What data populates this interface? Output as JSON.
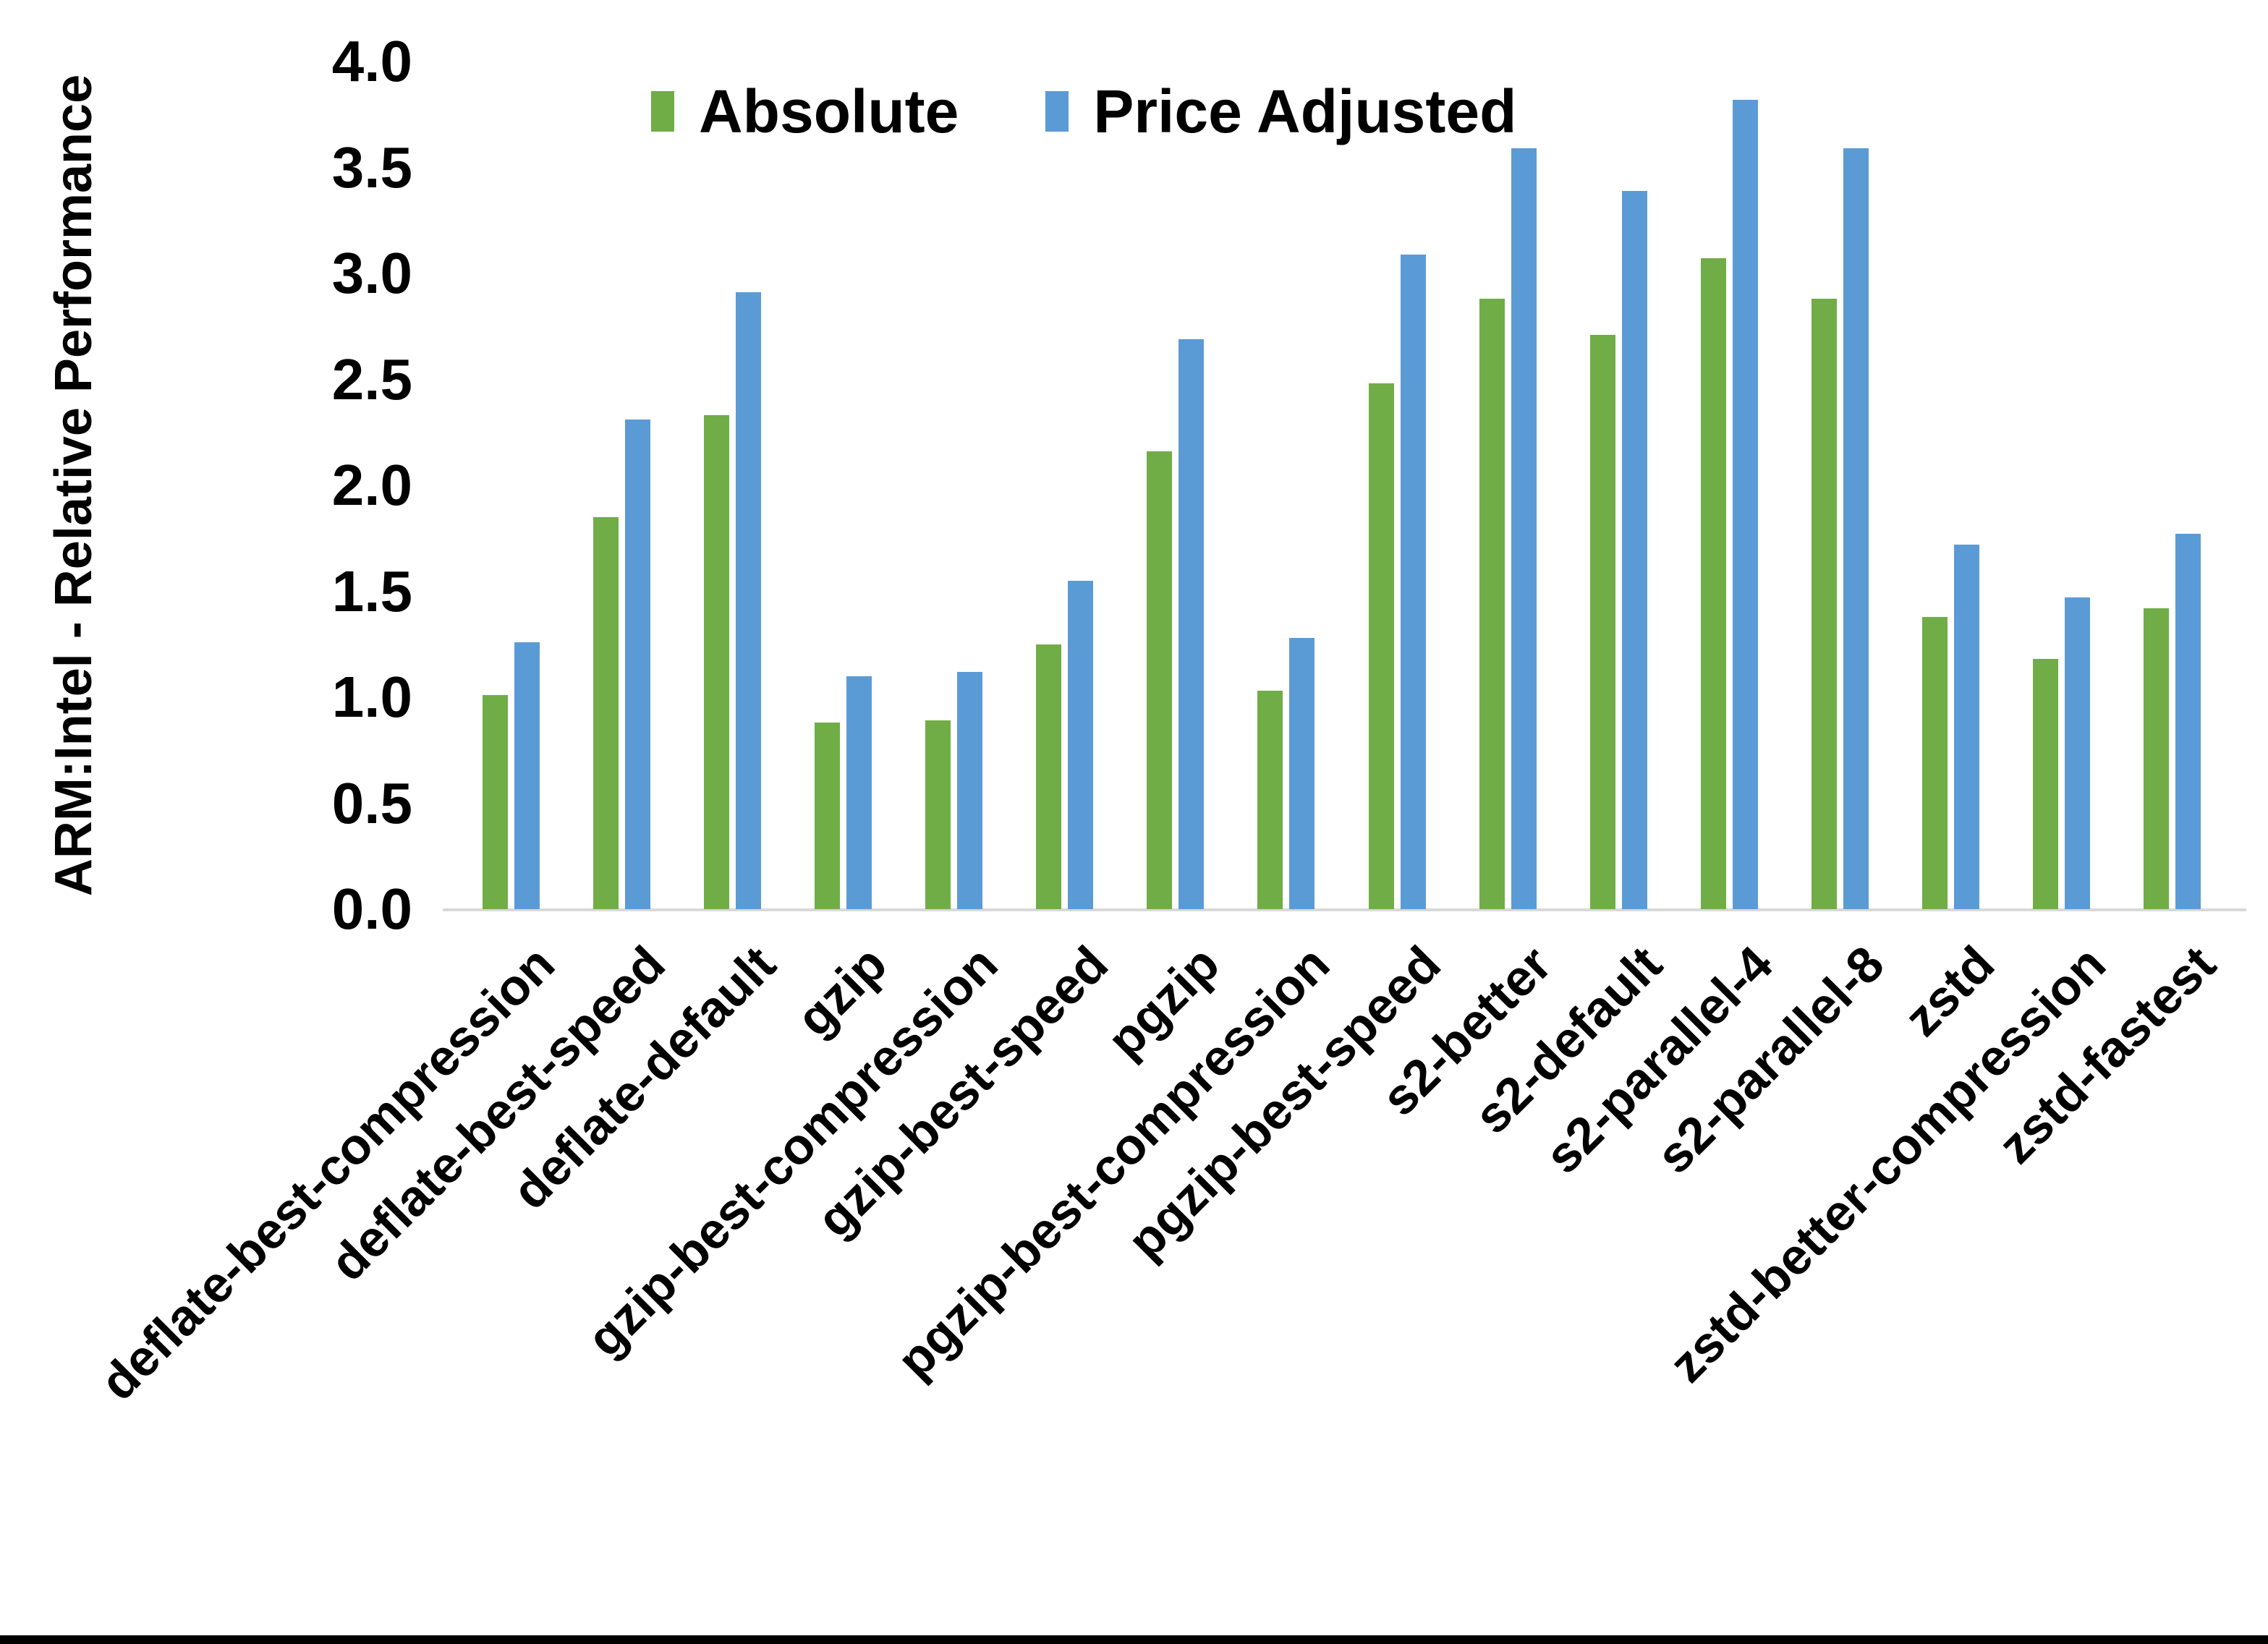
{
  "page": {
    "background": "#ffffff",
    "bottom_edge_color": "#000000"
  },
  "chart_data": {
    "type": "bar",
    "title": "",
    "xlabel": "",
    "ylabel": "ARM:Intel - Relative Performance",
    "ylim": [
      0.0,
      4.0
    ],
    "ytick_labels": [
      "0.0",
      "0.5",
      "1.0",
      "1.5",
      "2.0",
      "2.5",
      "3.0",
      "3.5",
      "4.0"
    ],
    "grid": false,
    "legend_position": "top",
    "categories": [
      "deflate-best-compression",
      "deflate-best-speed",
      "deflate-default",
      "gzip",
      "gzip-best-compression",
      "gzip-best-speed",
      "pgzip",
      "pgzip-best-compression",
      "pgzip-best-speed",
      "s2-better",
      "s2-default",
      "s2-parallel-4",
      "s2-parallel-8",
      "zstd",
      "zstd-better-compression",
      "zstd-fastest"
    ],
    "series": [
      {
        "name": "Absolute",
        "color": "#70AD47",
        "values": [
          1.01,
          1.85,
          2.33,
          0.88,
          0.89,
          1.25,
          2.16,
          1.03,
          2.48,
          2.88,
          2.71,
          3.07,
          2.88,
          1.38,
          1.18,
          1.42
        ]
      },
      {
        "name": "Price Adjusted",
        "color": "#5B9BD5",
        "values": [
          1.26,
          2.31,
          2.91,
          1.1,
          1.12,
          1.55,
          2.69,
          1.28,
          3.09,
          3.59,
          3.39,
          3.82,
          3.59,
          1.72,
          1.47,
          1.77
        ]
      }
    ]
  }
}
